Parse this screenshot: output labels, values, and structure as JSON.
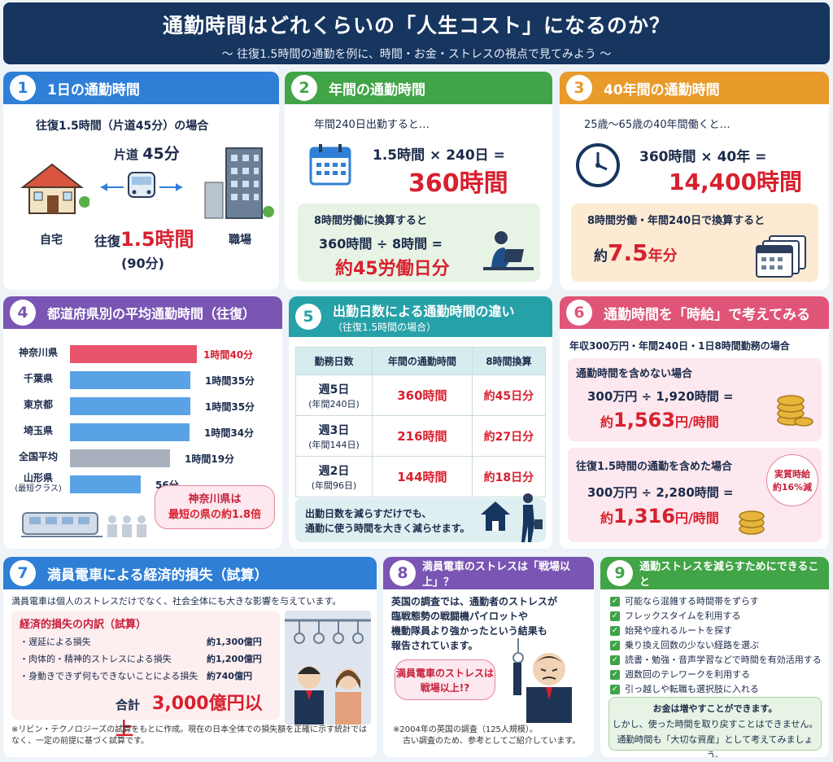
{
  "header": {
    "title": "通勤時間はどれくらいの「人生コスト」になるのか？",
    "subtitle": "～ 往復1.5時間の通勤を例に、時間・お金・ストレスの視点で見てみよう ～"
  },
  "colors": {
    "blue": "#2f7fd6",
    "green": "#41a447",
    "orange": "#e89a2b",
    "purple": "#7a55b3",
    "teal": "#27a1a8",
    "pink": "#e05577",
    "navy": "#16355f",
    "accent_red": "#d8202e"
  },
  "p1": {
    "num": "1",
    "title": "1日の通勤時間",
    "cond": "往復1.5時間（片道45分）の場合",
    "oneway_label": "片道",
    "oneway_value": "45分",
    "home": "自宅",
    "work": "職場",
    "round_label": "往復",
    "round_value": "1.5時間",
    "round_min": "(90分)"
  },
  "p2": {
    "num": "2",
    "title": "年間の通勤時間",
    "cond": "年間240日出勤すると…",
    "formula": "1.5時間 × 240日 =",
    "result": "360時間",
    "conv_title": "8時間労働に換算すると",
    "conv_formula": "360時間 ÷ 8時間 =",
    "conv_result": "約45労働日分"
  },
  "p3": {
    "num": "3",
    "title": "40年間の通勤時間",
    "cond": "25歳～65歳の40年間働くと…",
    "formula": "360時間 × 40年 =",
    "result": "14,400時間",
    "conv_title": "8時間労働・年間240日で換算すると",
    "conv_pre": "約",
    "conv_value": "7.5",
    "conv_unit": "年分"
  },
  "p4": {
    "num": "4",
    "title": "都道府県別の平均通勤時間（往復）",
    "bars": [
      {
        "name": "神奈川県",
        "label": "1時間40分",
        "minutes": 100,
        "type": "red"
      },
      {
        "name": "千葉県",
        "label": "1時間35分",
        "minutes": 95,
        "type": "blue"
      },
      {
        "name": "東京都",
        "label": "1時間35分",
        "minutes": 95,
        "type": "blue"
      },
      {
        "name": "埼玉県",
        "label": "1時間34分",
        "minutes": 94,
        "type": "blue"
      },
      {
        "name": "全国平均",
        "label": "1時間19分",
        "minutes": 79,
        "type": "gray"
      },
      {
        "name": "山形県",
        "sub": "(最短クラス)",
        "label": "56分",
        "minutes": 56,
        "type": "blue"
      }
    ],
    "bubble1": "神奈川県は",
    "bubble2": "最短の県の約1.8倍"
  },
  "p5": {
    "num": "5",
    "title": "出勤日数による通勤時間の違い",
    "subtitle": "（往復1.5時間の場合）",
    "cols": [
      "勤務日数",
      "年間の通勤時間",
      "8時間換算"
    ],
    "rows": [
      {
        "d": "週5日",
        "dsub": "(年間240日)",
        "h": "360時間",
        "c": "約45日分"
      },
      {
        "d": "週3日",
        "dsub": "(年間144日)",
        "h": "216時間",
        "c": "約27日分"
      },
      {
        "d": "週2日",
        "dsub": "(年間96日)",
        "h": "144時間",
        "c": "約18日分"
      }
    ],
    "note1": "出勤日数を減らすだけでも、",
    "note2": "通勤に使う時間を大きく減らせます。"
  },
  "p6": {
    "num": "6",
    "title": "通勤時間を「時給」で考えてみる",
    "cond": "年収300万円・年間240日・1日8時間勤務の場合",
    "a_title": "通勤時間を含めない場合",
    "a_formula": "300万円 ÷ 1,920時間 =",
    "a_pre": "約",
    "a_value": "1,563",
    "a_unit": "円/時間",
    "b_title": "往復1.5時間の通勤を含めた場合",
    "b_formula": "300万円 ÷ 2,280時間 =",
    "b_pre": "約",
    "b_value": "1,316",
    "b_unit": "円/時間",
    "badge1": "実質時給",
    "badge2": "約16%減"
  },
  "p7": {
    "num": "7",
    "title": "満員電車による経済的損失（試算）",
    "intro": "満員電車は個人のストレスだけでなく、社会全体にも大きな影響を与えています。",
    "sub_title": "経済的損失の内訳（試算）",
    "items": [
      {
        "name": "・遅延による損失",
        "value": "約1,300億円"
      },
      {
        "name": "・肉体的・精神的ストレスによる損失",
        "value": "約1,200億円"
      },
      {
        "name": "・身動きできず何もできないことによる損失",
        "value": "約740億円"
      }
    ],
    "total_label": "合計",
    "total_value": "3,000億円以上",
    "note": "※リビン・テクノロジーズの試算をもとに作成。現在の日本全体での損失額を正確に示す統計ではなく、一定の前提に基づく試算です。"
  },
  "p8": {
    "num": "8",
    "title": "満員電車のストレスは「戦場以上」？",
    "text": [
      "英国の調査では、通勤者のストレスが",
      "臨戦態勢の戦闘機パイロットや",
      "機動隊員より強かったという結果も",
      "報告されています。"
    ],
    "bubble1": "満員電車のストレスは",
    "bubble2": "戦場以上!?",
    "note1": "※2004年の英国の調査（125人規模）。",
    "note2": "古い調査のため、参考としてご紹介しています。"
  },
  "p9": {
    "num": "9",
    "title": "通勤ストレスを減らすためにできること",
    "items": [
      "可能なら混雑する時間帯をずらす",
      "フレックスタイムを利用する",
      "始発や座れるルートを探す",
      "乗り換え回数の少ない経路を選ぶ",
      "読書・勉強・音声学習などで時間を有効活用する",
      "週数回のテレワークを利用する",
      "引っ越しや転職も選択肢に入れる"
    ],
    "box1": "お金は増やすことができます。",
    "box2": "しかし、使った時間を取り戻すことはできません。",
    "box3": "通勤時間も「大切な資産」として考えてみましょう。"
  },
  "icons": [
    "house-icon",
    "train-icon",
    "building-icon",
    "calendar-icon",
    "clock-icon",
    "worker-icon",
    "coins-icon",
    "commuter-icon",
    "passengers-icon"
  ]
}
